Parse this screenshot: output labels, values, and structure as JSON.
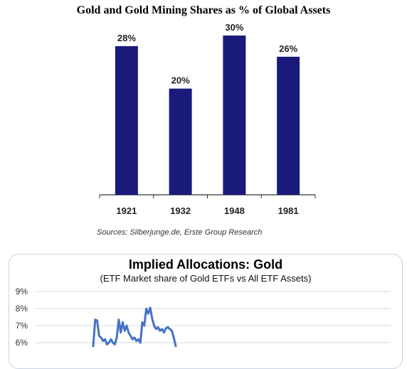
{
  "chart_data": [
    {
      "type": "bar",
      "title": "Gold and Gold Mining Shares as % of Global Assets",
      "categories": [
        "1921",
        "1932",
        "1948",
        "1981"
      ],
      "values": [
        28,
        20,
        30,
        26
      ],
      "value_labels": [
        "28%",
        "20%",
        "30%",
        "26%"
      ],
      "xlabel": "",
      "ylabel": "",
      "ylim": [
        0,
        32
      ],
      "grid": false,
      "bar_color": "#1a1a7a",
      "source": "Sources: Silberjunge.de, Erste Group Research"
    },
    {
      "type": "line",
      "title": "Implied Allocations: Gold",
      "subtitle": "(ETF Market share of Gold ETFs vs All ETF Assets)",
      "y_tick_labels": [
        "9%",
        "8%",
        "7%",
        "6%"
      ],
      "y_ticks": [
        9,
        8,
        7,
        6
      ],
      "ylim": [
        5.8,
        9.2
      ],
      "grid": true,
      "line_color": "#4472c4",
      "series": [
        {
          "values": [
            5.8,
            7.35,
            7.3,
            6.4,
            6.3,
            6.1,
            6.2,
            5.9,
            6.0,
            6.2,
            6.0,
            5.9,
            6.3,
            7.35,
            6.6,
            7.2,
            6.7,
            7.0,
            6.6,
            6.4,
            6.2,
            6.3,
            6.1,
            6.2,
            6.0,
            7.2,
            7.0,
            8.0,
            7.7,
            8.05,
            7.4,
            7.0,
            6.8,
            6.9,
            6.7,
            6.8,
            6.6,
            6.85,
            6.9,
            6.8,
            6.7,
            6.3,
            5.8
          ]
        }
      ]
    }
  ]
}
